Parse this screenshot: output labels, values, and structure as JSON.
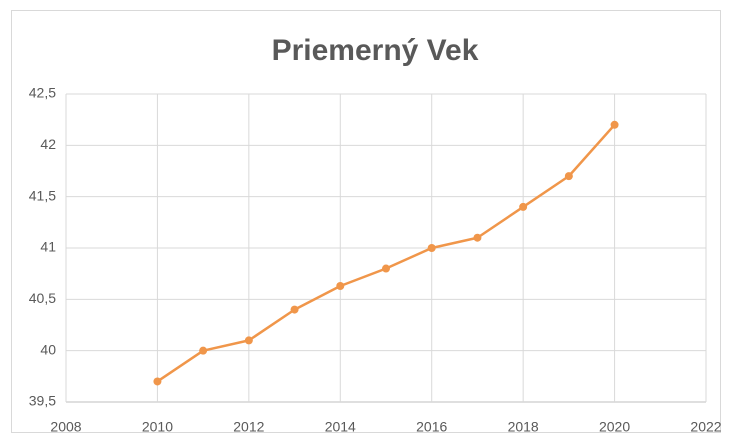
{
  "chart_data": {
    "type": "line",
    "title": "Priemerný Vek",
    "x": [
      2010,
      2011,
      2012,
      2013,
      2014,
      2015,
      2016,
      2017,
      2018,
      2019,
      2020
    ],
    "series": [
      {
        "name": "Priemerný Vek",
        "color": "#f0964a",
        "values": [
          39.7,
          40.0,
          40.1,
          40.4,
          40.63,
          40.8,
          41.0,
          41.1,
          41.4,
          41.7,
          42.2
        ]
      }
    ],
    "xlim": [
      2008,
      2022
    ],
    "xticks": [
      2008,
      2010,
      2012,
      2014,
      2016,
      2018,
      2020,
      2022
    ],
    "ylim": [
      39.5,
      42.5
    ],
    "yticks": [
      {
        "value": 39.5,
        "label": "39,5"
      },
      40,
      {
        "value": 40.5,
        "label": "40,5"
      },
      41,
      {
        "value": 41.5,
        "label": "41,5"
      },
      42,
      {
        "value": 42.5,
        "label": "42,5"
      }
    ],
    "grid": true
  }
}
